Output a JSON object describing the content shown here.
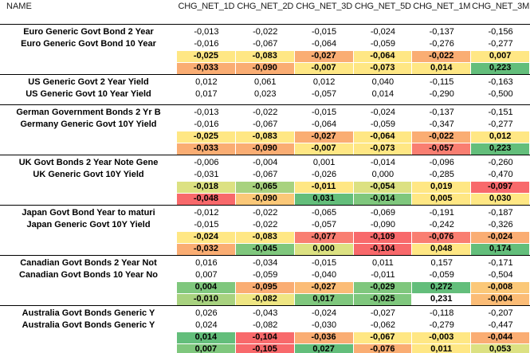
{
  "header": {
    "name_label": "NAME",
    "columns": [
      "CHG_NET_1D",
      "CHG_NET_2D",
      "CHG_NET_3D",
      "CHG_NET_5D",
      "CHG_NET_1M",
      "CHG_NET_3M"
    ]
  },
  "palette": {
    "green": "#63BE7B",
    "green_medium": "#7FC77D",
    "green_light": "#A8D27F",
    "yellow_green": "#DCE182",
    "yellow_pale": "#EFE683",
    "yellow": "#FFE784",
    "orange_yellow": "#FBC878",
    "orange_light": "#FBBC76",
    "orange": "#FAAD73",
    "red_light": "#F97E71",
    "red": "#F8696B",
    "white": "#FFFFFF"
  },
  "groups": [
    {
      "rows": [
        {
          "name": "Euro Generic Govt Bond 2 Year",
          "values": [
            "-0,013",
            "-0,022",
            "-0,015",
            "-0,024",
            "-0,137",
            "-0,156"
          ]
        },
        {
          "name": "Euro Generic Govt Bond 10 Year",
          "values": [
            "-0,016",
            "-0,067",
            "-0,064",
            "-0,059",
            "-0,276",
            "-0,277"
          ]
        },
        {
          "name": "",
          "values": [
            "-0,025",
            "-0,083",
            "-0,027",
            "-0,064",
            "-0,022",
            "0,007"
          ],
          "colors": [
            "#FFE784",
            "#FFE784",
            "#FAAD73",
            "#FFE784",
            "#FAAD73",
            "#FFE784"
          ]
        },
        {
          "name": "",
          "values": [
            "-0,033",
            "-0,090",
            "-0,007",
            "-0,073",
            "0,014",
            "0,223"
          ],
          "colors": [
            "#FAAD73",
            "#FAAD73",
            "#FFE784",
            "#FFE784",
            "#FFE784",
            "#63BE7B"
          ]
        }
      ]
    },
    {
      "spacer": true,
      "rows": [
        {
          "name": "US Generic Govt 2 Year Yield",
          "values": [
            "0,012",
            "0,061",
            "0,012",
            "0,040",
            "-0,115",
            "-0,163"
          ]
        },
        {
          "name": "US Generic Govt 10 Year Yield",
          "values": [
            "0,017",
            "0,023",
            "-0,057",
            "0,014",
            "-0,290",
            "-0,500"
          ]
        }
      ]
    },
    {
      "rows": [
        {
          "name": "German Government Bonds 2 Yr B",
          "values": [
            "-0,013",
            "-0,022",
            "-0,015",
            "-0,024",
            "-0,137",
            "-0,151"
          ]
        },
        {
          "name": "Germany Generic Govt 10Y Yield",
          "values": [
            "-0,016",
            "-0,067",
            "-0,064",
            "-0,059",
            "-0,347",
            "-0,277"
          ]
        },
        {
          "name": "",
          "values": [
            "-0,025",
            "-0,083",
            "-0,027",
            "-0,064",
            "-0,022",
            "0,012"
          ],
          "colors": [
            "#FFE784",
            "#FFE784",
            "#FAAD73",
            "#FFE784",
            "#FAAD73",
            "#FFE784"
          ]
        },
        {
          "name": "",
          "values": [
            "-0,033",
            "-0,090",
            "-0,007",
            "-0,073",
            "-0,057",
            "0,223"
          ],
          "colors": [
            "#FAAD73",
            "#FAAD73",
            "#FFE784",
            "#FFE784",
            "#F97E71",
            "#63BE7B"
          ]
        }
      ]
    },
    {
      "rows": [
        {
          "name": "UK Govt Bonds 2 Year Note Gene",
          "values": [
            "-0,006",
            "-0,004",
            "0,001",
            "-0,014",
            "-0,096",
            "-0,260"
          ]
        },
        {
          "name": "UK Generic Govt 10Y Yield",
          "values": [
            "-0,031",
            "-0,067",
            "-0,026",
            "0,000",
            "-0,285",
            "-0,470"
          ]
        },
        {
          "name": "",
          "values": [
            "-0,018",
            "-0,065",
            "-0,011",
            "-0,054",
            "0,019",
            "-0,097"
          ],
          "colors": [
            "#DCE182",
            "#A8D27F",
            "#FFE784",
            "#DCE182",
            "#FFE784",
            "#F8696B"
          ]
        },
        {
          "name": "",
          "values": [
            "-0,048",
            "-0,090",
            "0,031",
            "-0,014",
            "0,005",
            "0,030"
          ],
          "colors": [
            "#F8696B",
            "#FBC878",
            "#63BE7B",
            "#7FC77D",
            "#FFE784",
            "#FFE784"
          ]
        }
      ]
    },
    {
      "rows": [
        {
          "name": "Japan Govt Bond Year to maturi",
          "values": [
            "-0,012",
            "-0,022",
            "-0,065",
            "-0,069",
            "-0,191",
            "-0,187"
          ]
        },
        {
          "name": "Japan Generic Govt 10Y Yield",
          "values": [
            "-0,015",
            "-0,022",
            "-0,057",
            "-0,090",
            "-0,242",
            "-0,326"
          ]
        },
        {
          "name": "",
          "values": [
            "-0,024",
            "-0,083",
            "-0,077",
            "-0,109",
            "-0,076",
            "-0,024"
          ],
          "colors": [
            "#FFE784",
            "#FFE784",
            "#F97E71",
            "#F8696B",
            "#F97E71",
            "#FAAD73"
          ]
        },
        {
          "name": "",
          "values": [
            "-0,032",
            "-0,045",
            "0,000",
            "-0,104",
            "0,048",
            "0,174"
          ],
          "colors": [
            "#FAAD73",
            "#7FC77D",
            "#DCE182",
            "#F8696B",
            "#FFE784",
            "#63BE7B"
          ]
        }
      ]
    },
    {
      "rows": [
        {
          "name": "Canadian Govt Bonds 2 Year Not",
          "values": [
            "0,016",
            "-0,034",
            "-0,015",
            "0,011",
            "0,157",
            "-0,171"
          ]
        },
        {
          "name": "Canadian Govt Bonds 10 Year No",
          "values": [
            "0,007",
            "-0,059",
            "-0,040",
            "-0,011",
            "-0,059",
            "-0,504"
          ]
        },
        {
          "name": "",
          "values": [
            "0,004",
            "-0,095",
            "-0,027",
            "-0,029",
            "0,272",
            "-0,008"
          ],
          "colors": [
            "#7FC77D",
            "#FAAD73",
            "#FBBC76",
            "#7FC77D",
            "#63BE7B",
            "#FBC878"
          ]
        },
        {
          "name": "",
          "values": [
            "-0,010",
            "-0,082",
            "0,017",
            "-0,025",
            "0,231",
            "-0,004"
          ],
          "colors": [
            "#A8D27F",
            "#EFE683",
            "#7FC77D",
            "#7FC77D",
            "#FFFFFF",
            "#FBBC76"
          ]
        }
      ]
    },
    {
      "rows": [
        {
          "name": "Australia Govt Bonds Generic Y",
          "values": [
            "0,026",
            "-0,043",
            "-0,024",
            "-0,027",
            "-0,118",
            "-0,207"
          ]
        },
        {
          "name": "Australia Govt Bonds Generic Y",
          "values": [
            "0,024",
            "-0,082",
            "-0,030",
            "-0,062",
            "-0,279",
            "-0,447"
          ]
        },
        {
          "name": "",
          "values": [
            "0,014",
            "-0,104",
            "-0,036",
            "-0,067",
            "-0,003",
            "-0,044"
          ],
          "colors": [
            "#63BE7B",
            "#F8696B",
            "#FAAD73",
            "#FFE784",
            "#FFE784",
            "#FAAD73"
          ]
        },
        {
          "name": "",
          "values": [
            "0,007",
            "-0,105",
            "0,027",
            "-0,076",
            "0,011",
            "0,053"
          ],
          "colors": [
            "#7FC77D",
            "#F8696B",
            "#63BE7B",
            "#FAAD73",
            "#FFE784",
            "#DCE182"
          ]
        }
      ]
    }
  ]
}
